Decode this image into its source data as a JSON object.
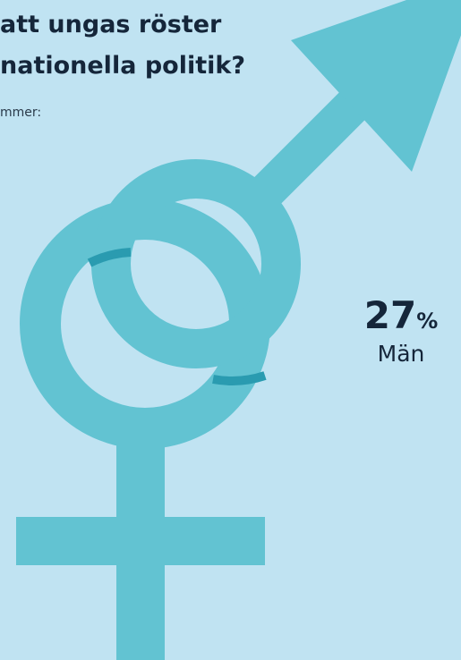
{
  "header": {
    "lines": [
      "att ungas röster",
      "nationella politik?"
    ],
    "subtitle": "mmer:"
  },
  "stat": {
    "value": "27",
    "unit": "%",
    "label": "Män"
  }
}
